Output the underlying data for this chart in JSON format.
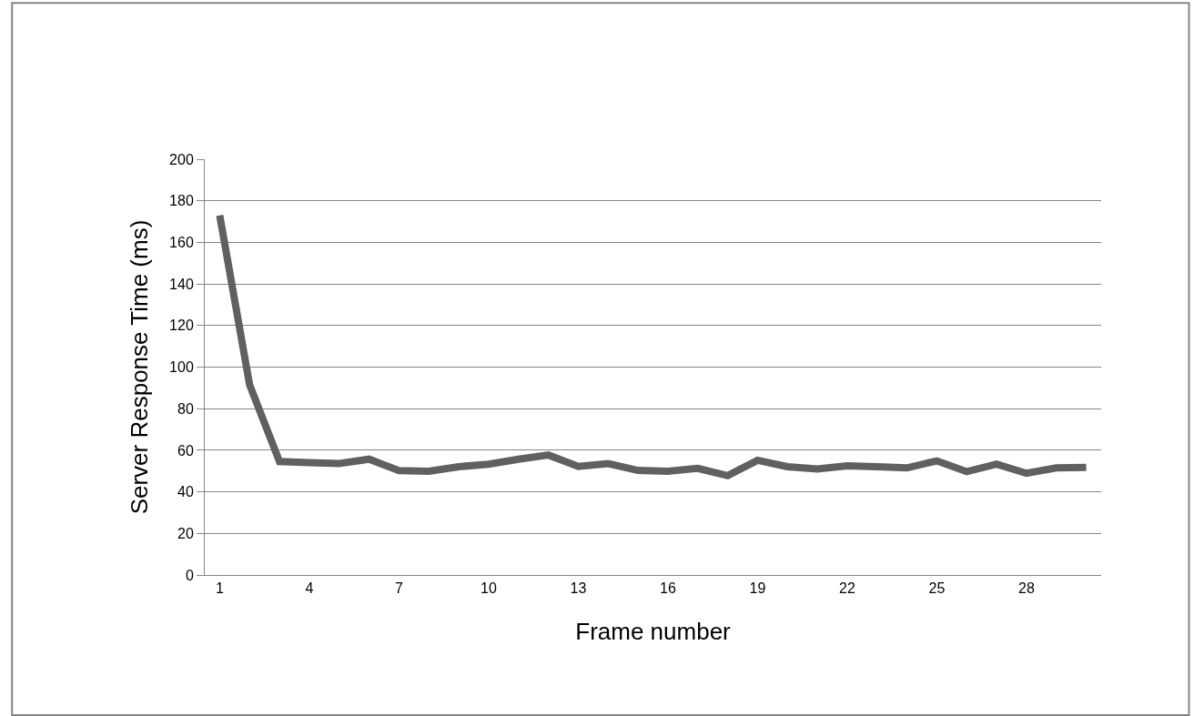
{
  "chart_data": {
    "type": "line",
    "xlabel": "Frame number",
    "ylabel": "Server Response Time (ms)",
    "categories": [
      "1",
      null,
      null,
      "4",
      null,
      null,
      "7",
      null,
      null,
      "10",
      null,
      null,
      "13",
      null,
      null,
      "16",
      null,
      null,
      "19",
      null,
      null,
      "22",
      null,
      null,
      "25",
      null,
      null,
      "28",
      null,
      null
    ],
    "series": [
      {
        "color": "#606060",
        "values": [
          173,
          91.5,
          54.6,
          54.1,
          53.6,
          55.7,
          50.2,
          49.9,
          52.1,
          53.3,
          55.7,
          57.7,
          52.2,
          53.6,
          50.3,
          49.9,
          51.3,
          47.8,
          55.2,
          52.1,
          51.0,
          52.5,
          52.1,
          51.5,
          54.9,
          49.7,
          53.3,
          48.9,
          51.5,
          51.8
        ]
      }
    ],
    "ylim": [
      0,
      200
    ],
    "yticks": [
      0,
      20,
      40,
      60,
      80,
      100,
      120,
      140,
      160,
      180,
      200
    ],
    "grid": "y",
    "marker": "none",
    "line_style": "solid"
  }
}
